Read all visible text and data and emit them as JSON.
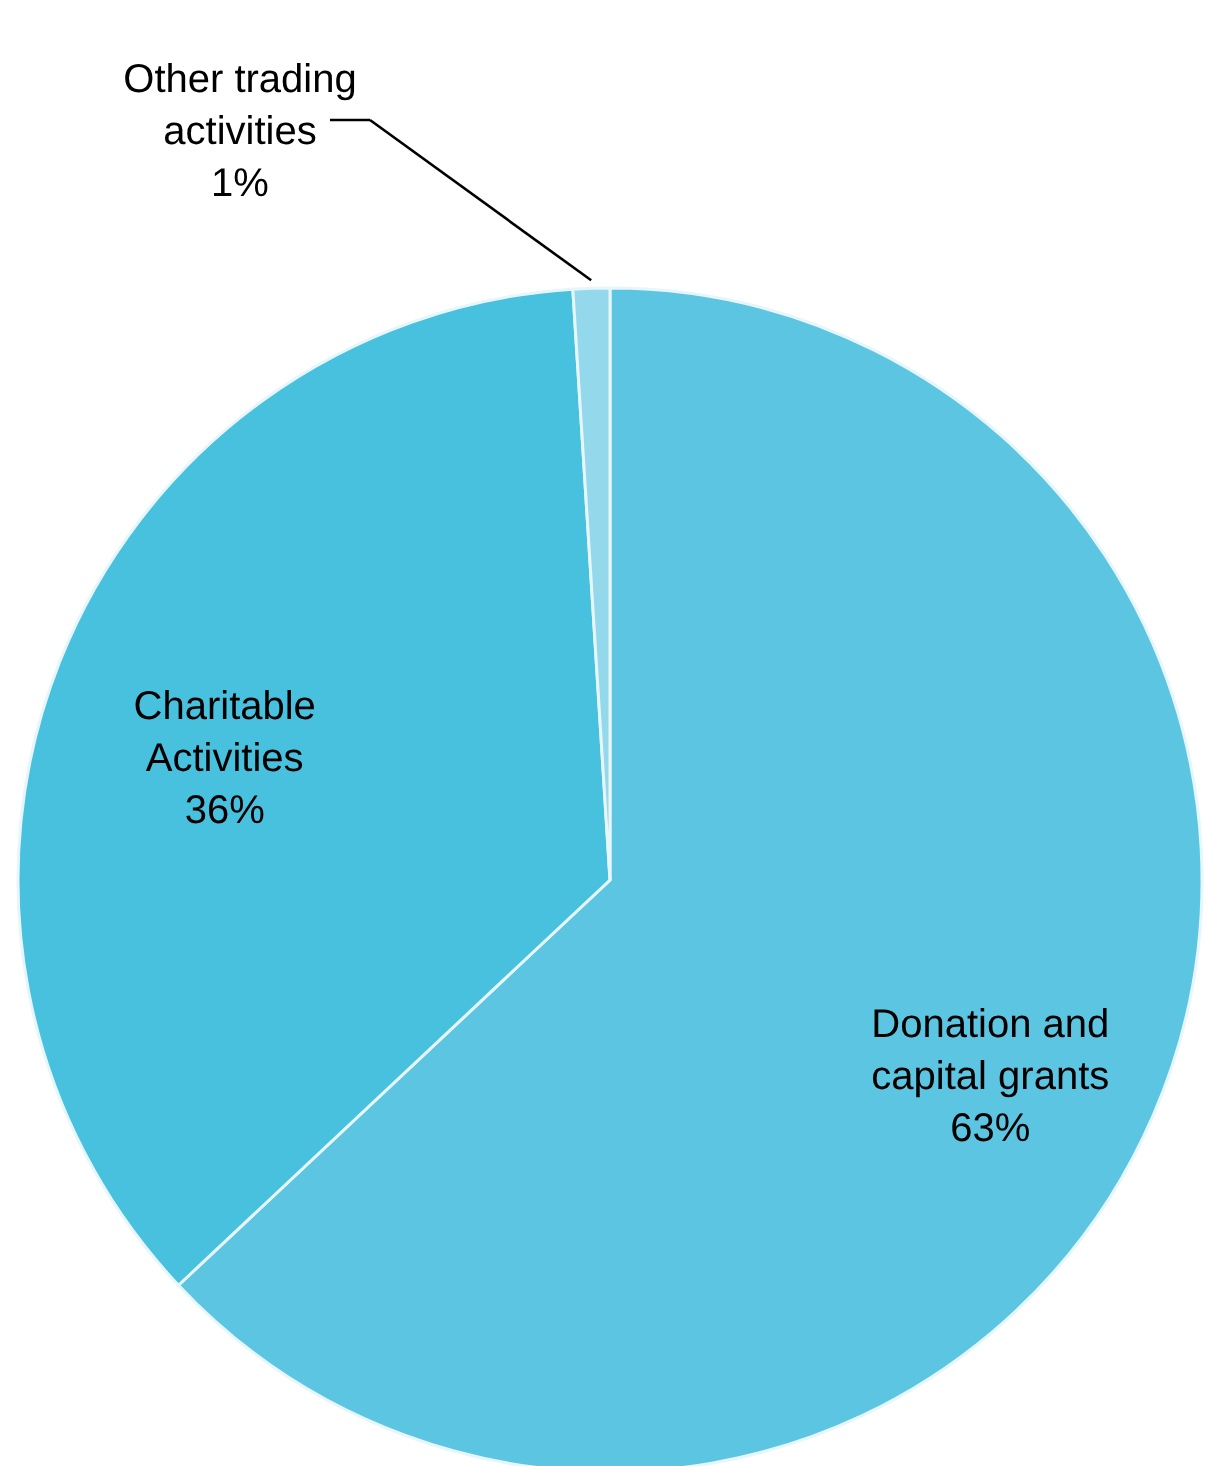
{
  "chart_data": {
    "type": "pie",
    "categories": [
      "Donation and capital grants",
      "Charitable Activities",
      "Other trading activities"
    ],
    "values": [
      63,
      36,
      1
    ],
    "colors": [
      "#5cc5e1",
      "#47c1de",
      "#93d8eb"
    ],
    "value_labels": [
      "63%",
      "36%",
      "1%"
    ]
  }
}
